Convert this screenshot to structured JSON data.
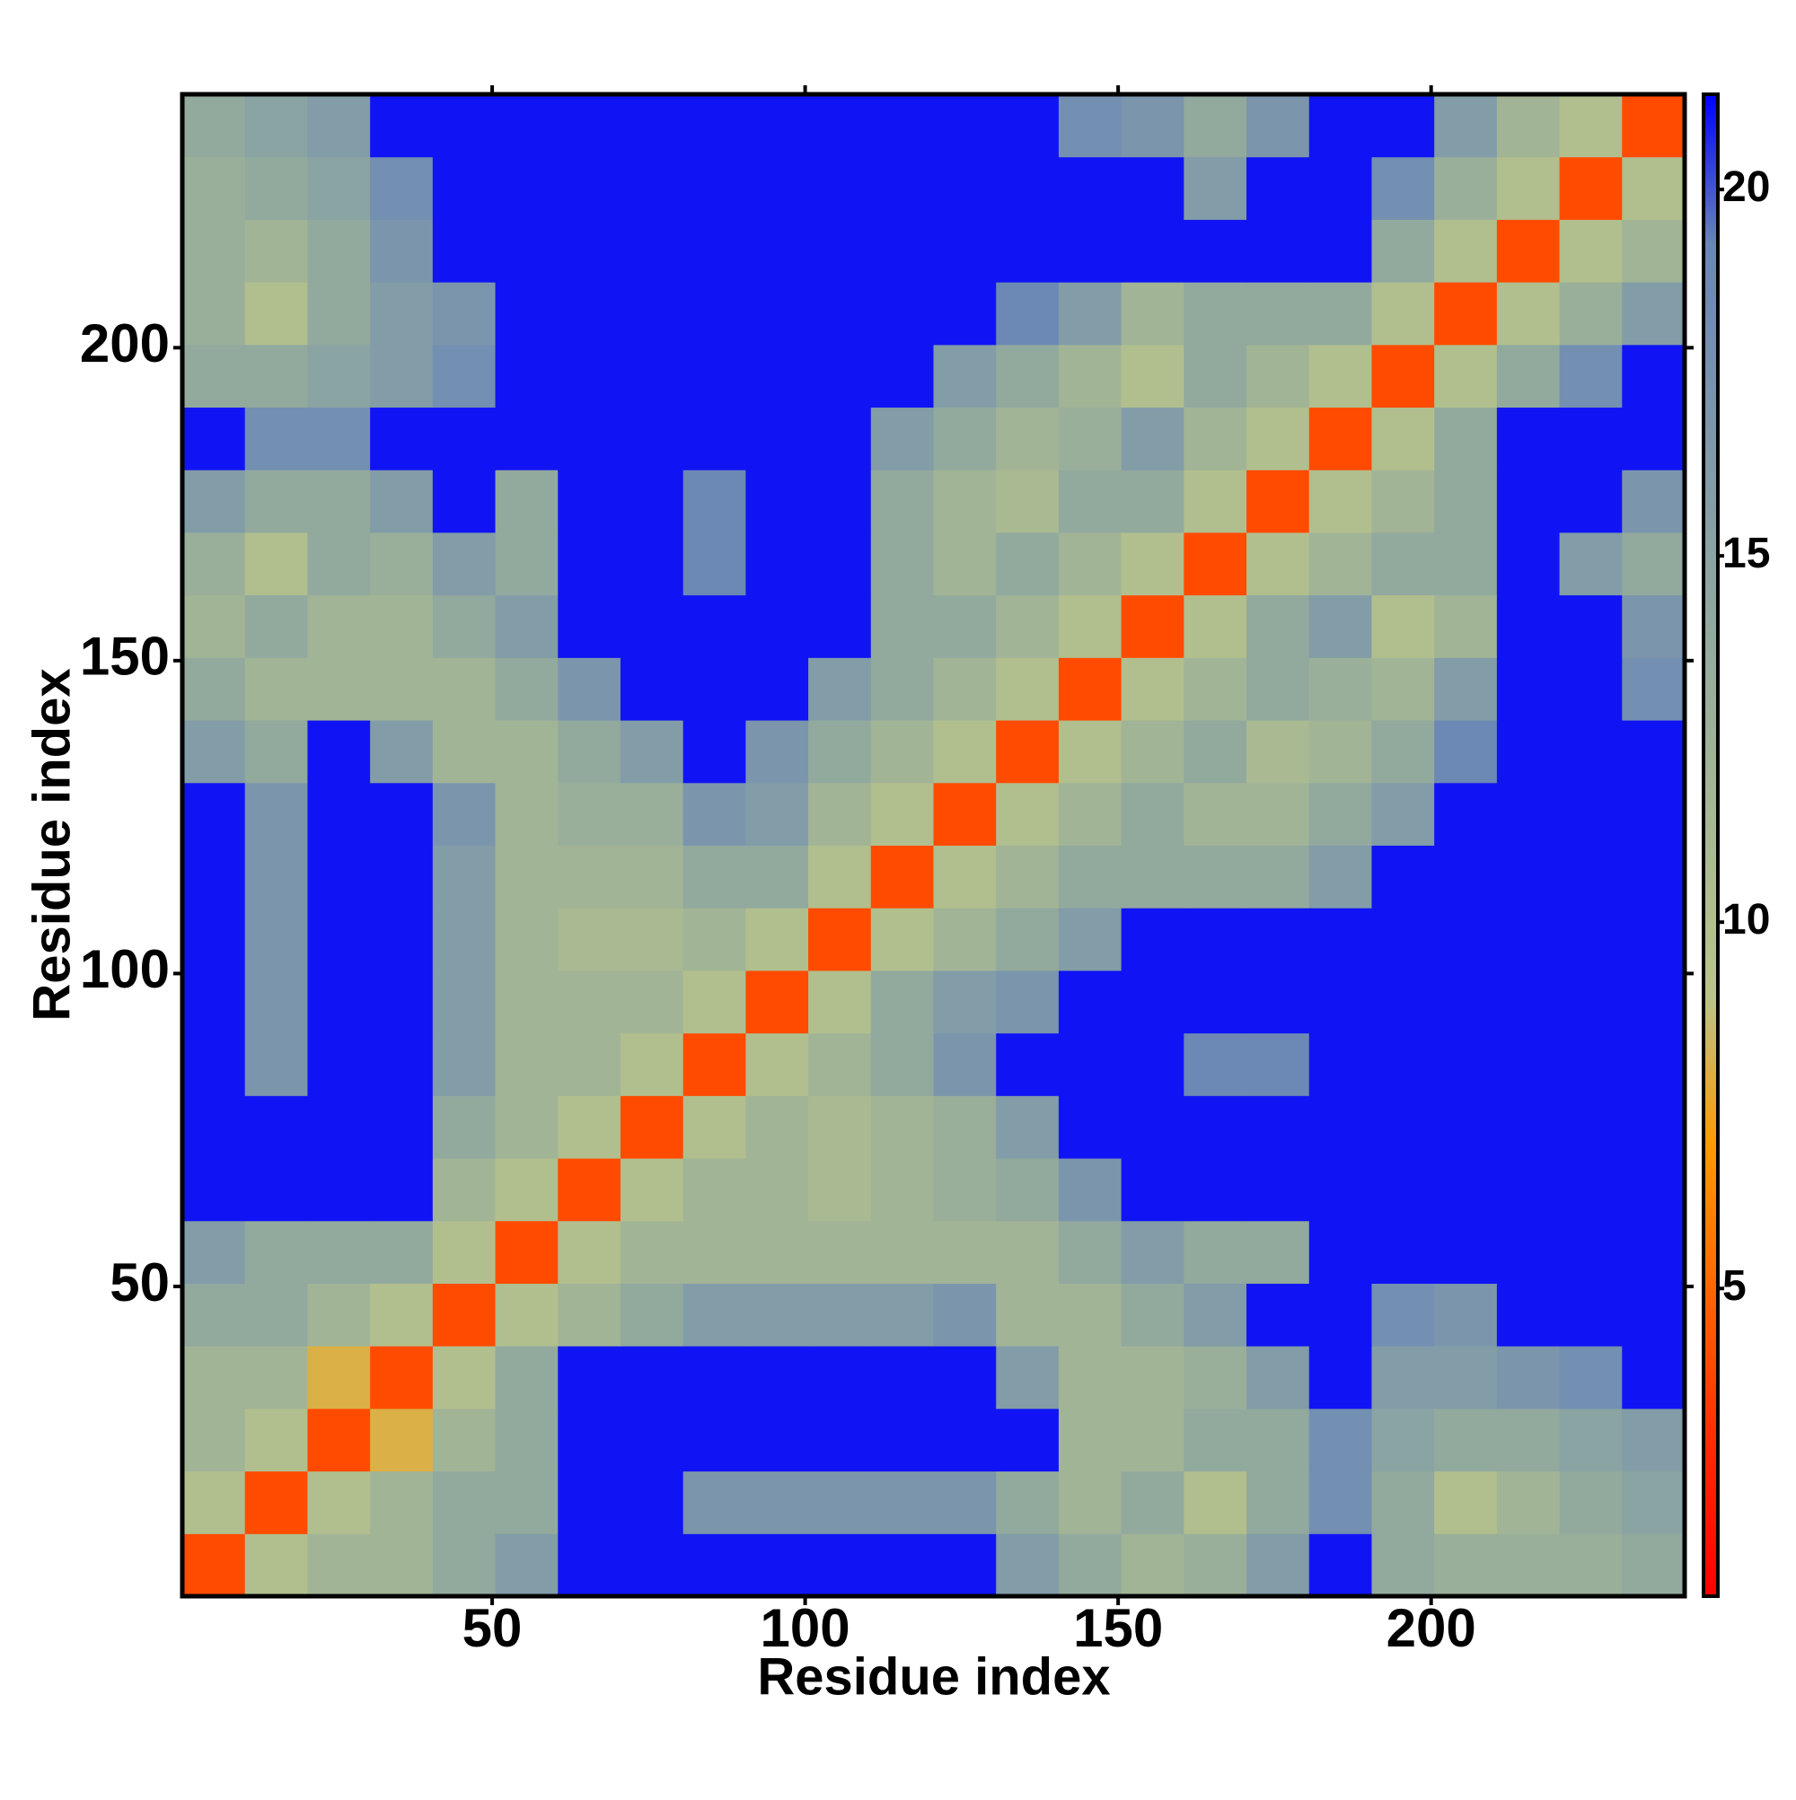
{
  "chart_data": {
    "type": "heatmap",
    "xlabel": "Residue index",
    "ylabel": "Residue index",
    "x_edges": [
      0.5,
      10.5,
      20.5,
      30.5,
      40.5,
      50.5,
      60.5,
      70.5,
      80.5,
      90.5,
      100.5,
      110.5,
      120.5,
      130.5,
      140.5,
      150.5,
      160.5,
      170.5,
      180.5,
      190.5,
      200.5,
      210.5,
      220.5,
      230.5,
      240.5
    ],
    "y_edges": [
      0.5,
      10.5,
      20.5,
      30.5,
      40.5,
      50.5,
      60.5,
      70.5,
      80.5,
      90.5,
      100.5,
      110.5,
      120.5,
      130.5,
      140.5,
      150.5,
      160.5,
      170.5,
      180.5,
      190.5,
      200.5,
      210.5,
      220.5,
      230.5,
      240.5
    ],
    "values": [
      [
        4,
        10,
        12,
        12,
        14,
        16,
        21,
        21,
        21,
        21,
        21,
        21,
        21,
        16,
        14,
        12,
        13,
        16,
        21,
        14,
        13,
        13,
        13,
        14
      ],
      [
        10,
        4,
        10,
        12,
        14,
        14,
        21,
        21,
        17,
        17,
        17,
        17,
        17,
        14,
        12,
        14,
        10,
        14,
        18,
        14,
        10,
        12,
        14,
        15
      ],
      [
        12,
        10,
        4,
        8,
        12,
        14,
        21,
        21,
        21,
        21,
        21,
        21,
        21,
        21,
        12,
        12,
        14,
        14,
        18,
        15,
        14,
        14,
        15,
        16
      ],
      [
        12,
        12,
        8,
        4,
        10,
        14,
        21,
        21,
        21,
        21,
        21,
        21,
        21,
        16,
        12,
        12,
        13,
        16,
        21,
        16,
        16,
        17,
        18,
        21
      ],
      [
        14,
        14,
        12,
        10,
        4,
        10,
        12,
        14,
        16,
        16,
        16,
        16,
        17,
        12,
        12,
        14,
        16,
        21,
        21,
        18,
        17,
        21,
        21,
        21
      ],
      [
        16,
        14,
        14,
        14,
        10,
        4,
        10,
        12,
        12,
        12,
        12,
        12,
        12,
        12,
        14,
        16,
        14,
        14,
        21,
        21,
        21,
        21,
        21,
        21
      ],
      [
        21,
        21,
        21,
        21,
        12,
        10,
        4,
        10,
        12,
        12,
        11,
        12,
        13,
        14,
        17,
        21,
        21,
        21,
        21,
        21,
        21,
        21,
        21,
        21
      ],
      [
        21,
        21,
        21,
        21,
        14,
        12,
        10,
        4,
        10,
        12,
        11,
        12,
        13,
        16,
        21,
        21,
        21,
        21,
        21,
        21,
        21,
        21,
        21,
        21
      ],
      [
        21,
        17,
        21,
        21,
        16,
        12,
        12,
        10,
        4,
        10,
        12,
        14,
        17,
        21,
        21,
        21,
        19,
        19,
        21,
        21,
        21,
        21,
        21,
        21
      ],
      [
        21,
        17,
        21,
        21,
        16,
        12,
        12,
        12,
        10,
        4,
        10,
        14,
        16,
        17,
        21,
        21,
        21,
        21,
        21,
        21,
        21,
        21,
        21,
        21
      ],
      [
        21,
        17,
        21,
        21,
        16,
        12,
        11,
        11,
        12,
        10,
        4,
        10,
        12,
        14,
        16,
        21,
        21,
        21,
        21,
        21,
        21,
        21,
        21,
        21
      ],
      [
        21,
        17,
        21,
        21,
        16,
        12,
        12,
        12,
        14,
        14,
        10,
        4,
        10,
        12,
        14,
        14,
        14,
        14,
        16,
        21,
        21,
        21,
        21,
        21
      ],
      [
        21,
        17,
        21,
        21,
        17,
        12,
        13,
        13,
        17,
        16,
        12,
        10,
        4,
        10,
        12,
        14,
        12,
        12,
        14,
        16,
        21,
        21,
        21,
        21
      ],
      [
        16,
        14,
        21,
        16,
        12,
        12,
        14,
        16,
        21,
        17,
        14,
        12,
        10,
        4,
        10,
        12,
        14,
        11,
        12,
        14,
        19,
        21,
        21,
        21
      ],
      [
        14,
        12,
        12,
        12,
        12,
        14,
        17,
        21,
        21,
        21,
        16,
        14,
        12,
        10,
        4,
        10,
        12,
        14,
        13,
        12,
        16,
        21,
        21,
        18
      ],
      [
        12,
        14,
        12,
        12,
        14,
        16,
        21,
        21,
        21,
        21,
        21,
        14,
        14,
        12,
        10,
        4,
        10,
        14,
        16,
        10,
        12,
        21,
        21,
        17
      ],
      [
        13,
        10,
        14,
        13,
        16,
        14,
        21,
        21,
        19,
        21,
        21,
        14,
        12,
        14,
        12,
        10,
        4,
        10,
        12,
        14,
        14,
        21,
        16,
        14
      ],
      [
        16,
        14,
        14,
        16,
        21,
        14,
        21,
        21,
        19,
        21,
        21,
        14,
        12,
        11,
        14,
        14,
        10,
        4,
        10,
        12,
        14,
        21,
        21,
        17
      ],
      [
        21,
        18,
        18,
        21,
        21,
        21,
        21,
        21,
        21,
        21,
        21,
        16,
        14,
        12,
        13,
        16,
        12,
        10,
        4,
        10,
        14,
        21,
        21,
        21
      ],
      [
        14,
        14,
        15,
        16,
        18,
        21,
        21,
        21,
        21,
        21,
        21,
        21,
        16,
        14,
        12,
        10,
        14,
        12,
        10,
        4,
        10,
        14,
        18,
        21
      ],
      [
        13,
        10,
        14,
        16,
        17,
        21,
        21,
        21,
        21,
        21,
        21,
        21,
        21,
        19,
        16,
        12,
        14,
        14,
        14,
        10,
        4,
        10,
        13,
        16
      ],
      [
        13,
        12,
        14,
        17,
        21,
        21,
        21,
        21,
        21,
        21,
        21,
        21,
        21,
        21,
        21,
        21,
        21,
        21,
        21,
        14,
        10,
        4,
        10,
        12
      ],
      [
        13,
        14,
        15,
        18,
        21,
        21,
        21,
        21,
        21,
        21,
        21,
        21,
        21,
        21,
        21,
        21,
        16,
        21,
        21,
        18,
        13,
        10,
        4,
        10
      ],
      [
        14,
        15,
        16,
        21,
        21,
        21,
        21,
        21,
        21,
        21,
        21,
        21,
        21,
        21,
        18,
        17,
        14,
        17,
        21,
        21,
        16,
        12,
        10,
        4
      ]
    ],
    "xlim": [
      0.5,
      240.5
    ],
    "ylim": [
      0.5,
      240.5
    ],
    "xticks": [
      50,
      100,
      150,
      200
    ],
    "yticks": [
      50,
      100,
      150,
      200
    ],
    "clim": [
      0.8,
      21.3
    ],
    "cticks": [
      5,
      10,
      15,
      20
    ],
    "colorscale": [
      "#ff0000",
      "#ff2a00",
      "#ff6400",
      "#ff9a00",
      "#b9c48a",
      "#a9ba92",
      "#99ae9a",
      "#89a2a4",
      "#7994ae",
      "#6a86b6",
      "#0000ff"
    ]
  }
}
